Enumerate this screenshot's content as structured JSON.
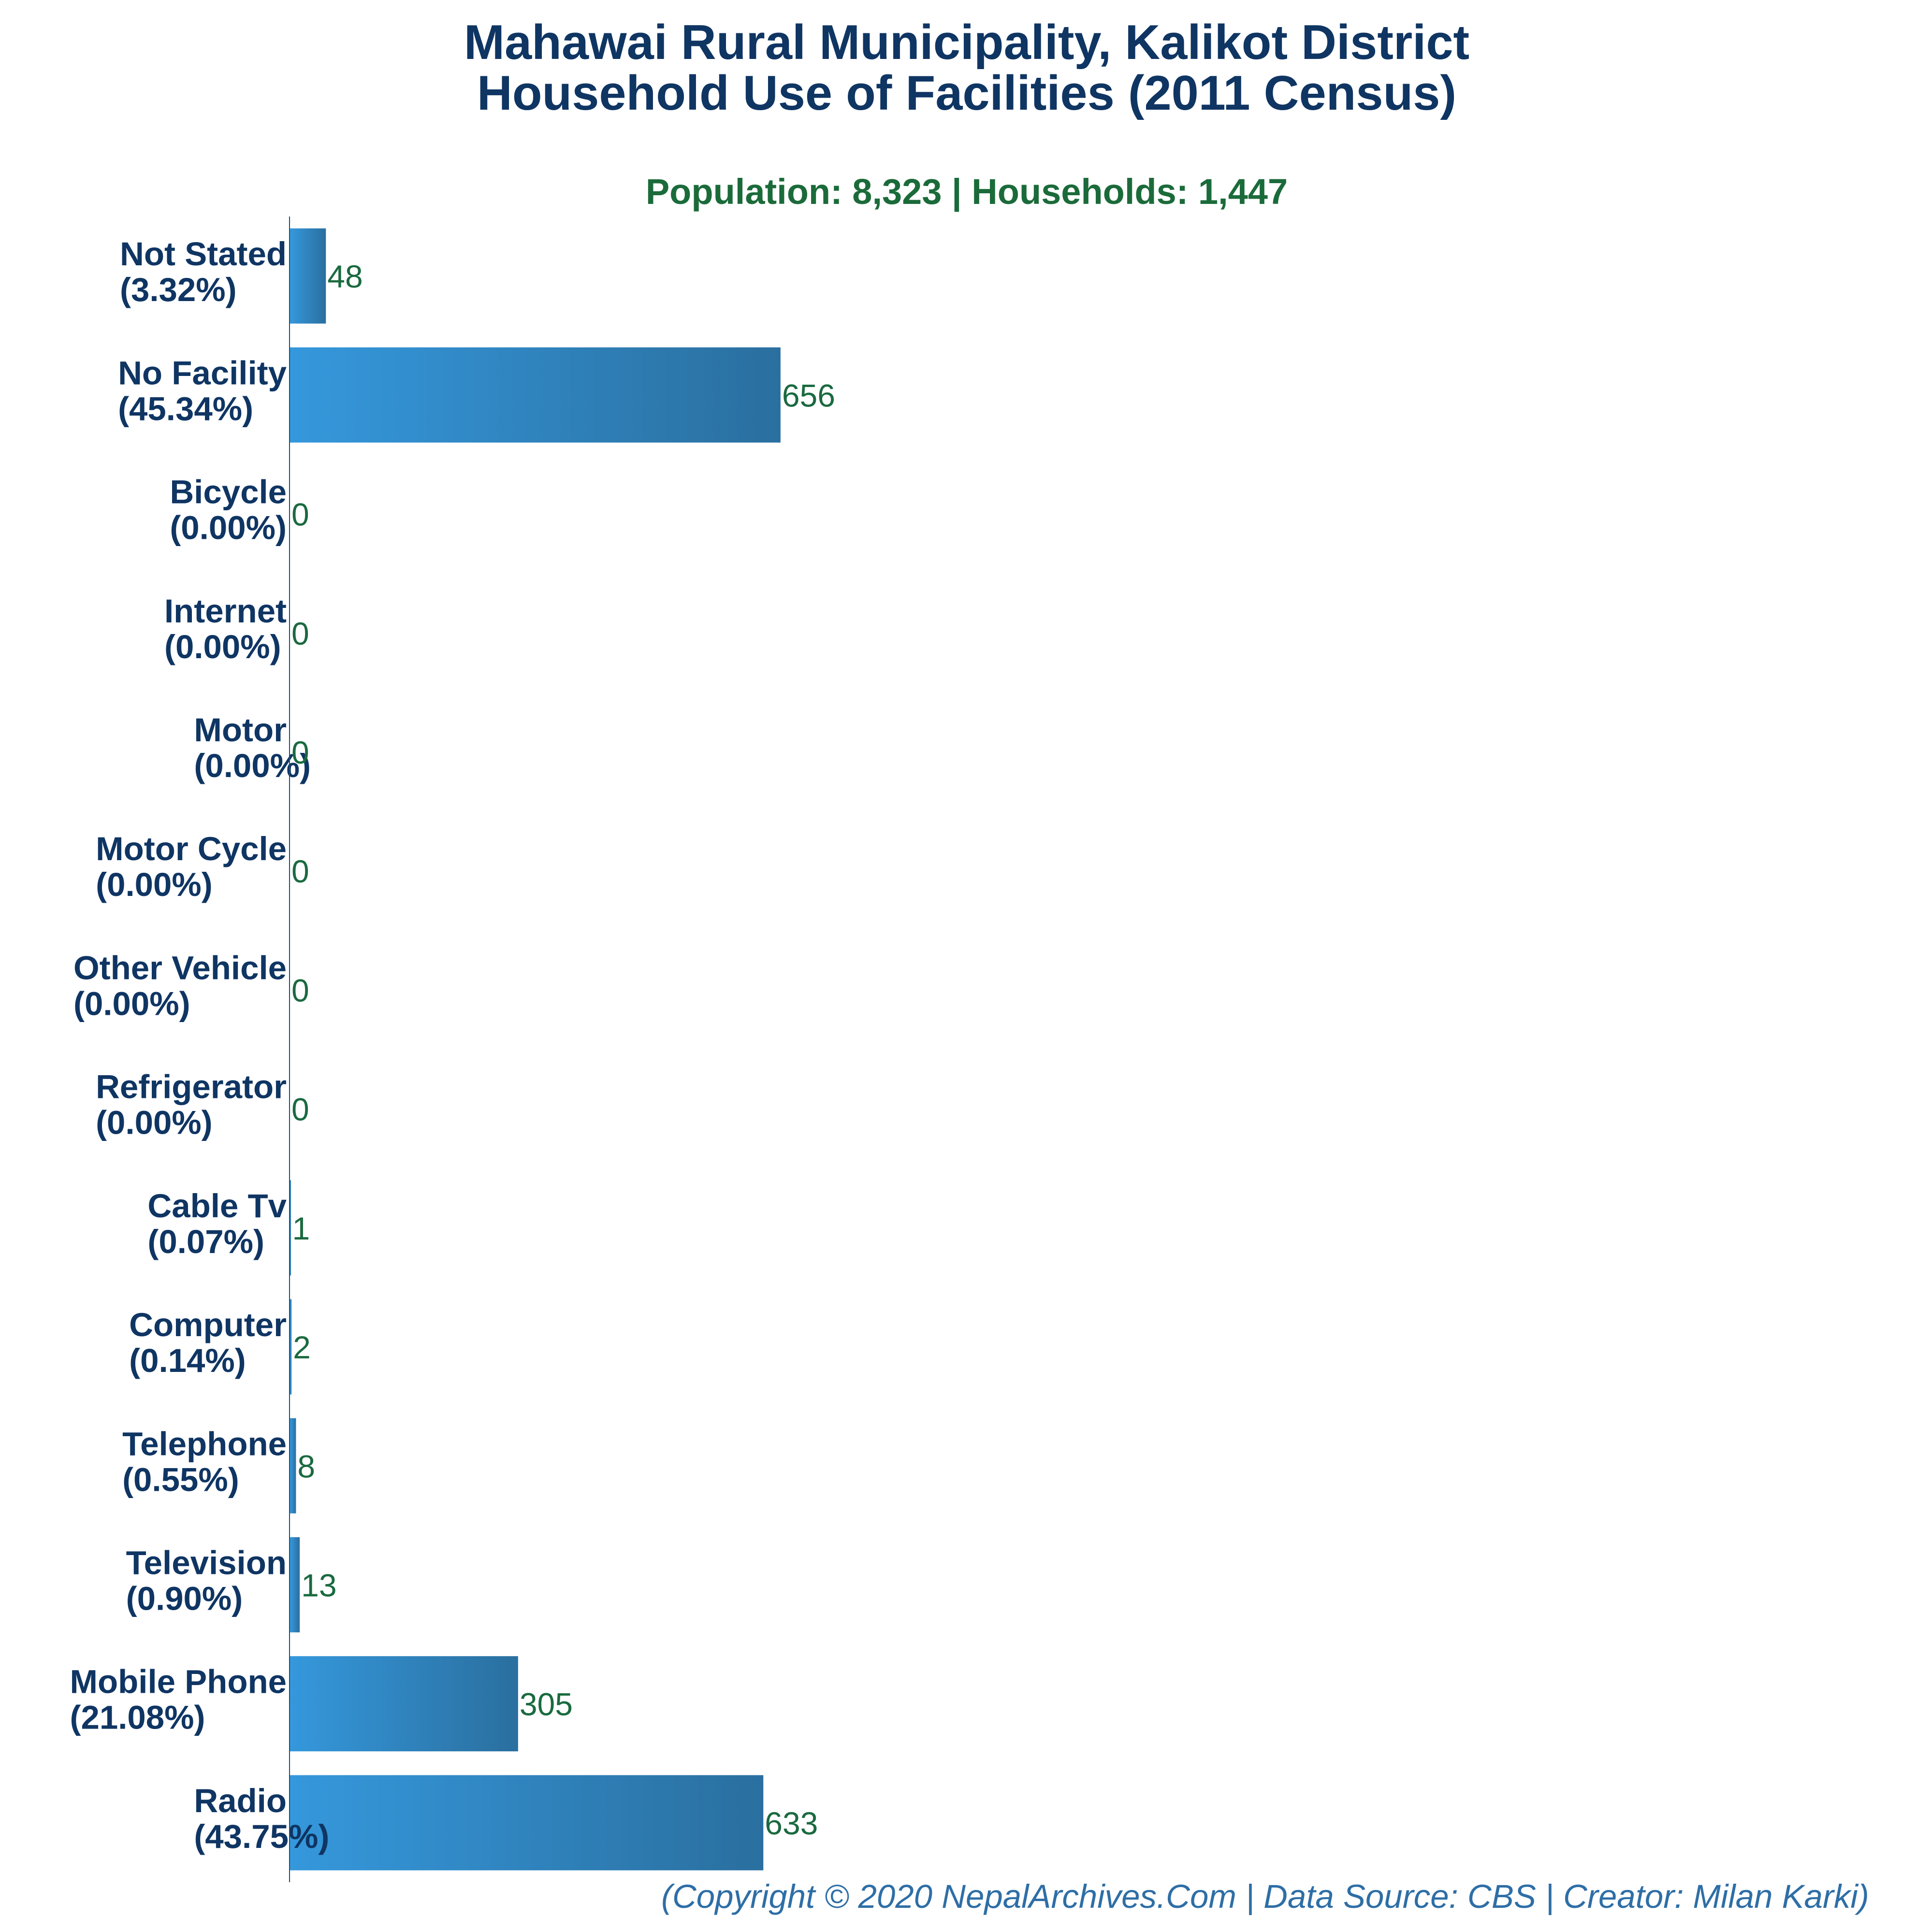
{
  "colors": {
    "title": "#0f3563",
    "subtitle": "#1b6b3a",
    "value_label": "#1a6a3f",
    "footer": "#2e6ea6",
    "bar_light": "#3598dc",
    "bar_dark": "#2a6f9f",
    "axis": "#1e4f6f"
  },
  "chart_data": {
    "type": "bar",
    "orientation": "horizontal",
    "title": "Mahawai Rural Municipality, Kalikot District",
    "title_line2": "Household Use of Facilities (2011 Census)",
    "subtitle": "Population: 8,323 | Households: 1,447",
    "xlabel": "",
    "ylabel": "",
    "xlim": [
      0,
      2000
    ],
    "grid": false,
    "categories": [
      "Not Stated",
      "No Facility",
      "Bicycle",
      "Internet",
      "Motor",
      "Motor Cycle",
      "Other Vehicle",
      "Refrigerator",
      "Cable Tv",
      "Computer",
      "Telephone",
      "Television",
      "Mobile Phone",
      "Radio"
    ],
    "percentages": [
      "(3.32%)",
      "(45.34%)",
      "(0.00%)",
      "(0.00%)",
      "(0.00%)",
      "(0.00%)",
      "(0.00%)",
      "(0.00%)",
      "(0.07%)",
      "(0.14%)",
      "(0.55%)",
      "(0.90%)",
      "(21.08%)",
      "(43.75%)"
    ],
    "values": [
      48,
      656,
      0,
      0,
      0,
      0,
      0,
      0,
      1,
      2,
      8,
      13,
      305,
      633
    ]
  },
  "footer": "(Copyright © 2020 NepalArchives.Com | Data Source: CBS | Creator: Milan Karki)"
}
